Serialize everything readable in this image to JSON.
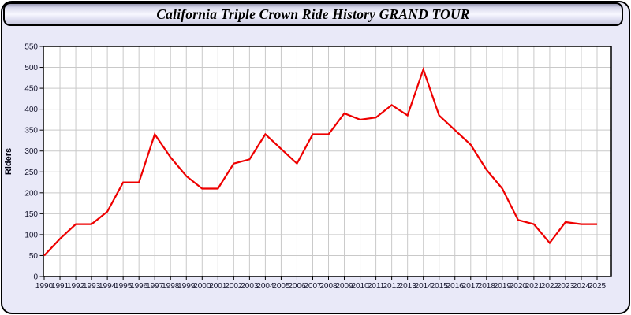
{
  "window": {
    "title": "California Triple Crown Ride History GRAND TOUR"
  },
  "colors": {
    "line_red": "#ee0000",
    "grid": "#c9c9c9",
    "panel_background": "#e9e9f8",
    "plot_background": "#ffffff",
    "frame_border": "#000000",
    "tick_label": "#14142c",
    "axis_title": "#000010"
  },
  "chart_data": {
    "type": "line",
    "title": "California Triple Crown Ride History GRAND TOUR",
    "xlabel": "",
    "ylabel": "Riders",
    "legend_position": "none",
    "grid": true,
    "ylim": [
      0,
      550
    ],
    "yticks": [
      0,
      50,
      100,
      150,
      200,
      250,
      300,
      350,
      400,
      450,
      500,
      550
    ],
    "x": [
      1990,
      1991,
      1992,
      1993,
      1994,
      1995,
      1996,
      1997,
      1998,
      1999,
      2000,
      2001,
      2002,
      2003,
      2004,
      2005,
      2006,
      2007,
      2008,
      2009,
      2010,
      2011,
      2012,
      2013,
      2014,
      2015,
      2016,
      2017,
      2018,
      2019,
      2020,
      2021,
      2022,
      2023,
      2024,
      2025
    ],
    "series": [
      {
        "name": "Riders",
        "values": [
          50,
          90,
          125,
          125,
          155,
          225,
          225,
          340,
          285,
          240,
          210,
          210,
          270,
          280,
          340,
          305,
          270,
          340,
          340,
          390,
          375,
          380,
          410,
          385,
          495,
          385,
          350,
          315,
          255,
          210,
          135,
          125,
          80,
          130,
          125,
          125
        ]
      }
    ]
  }
}
